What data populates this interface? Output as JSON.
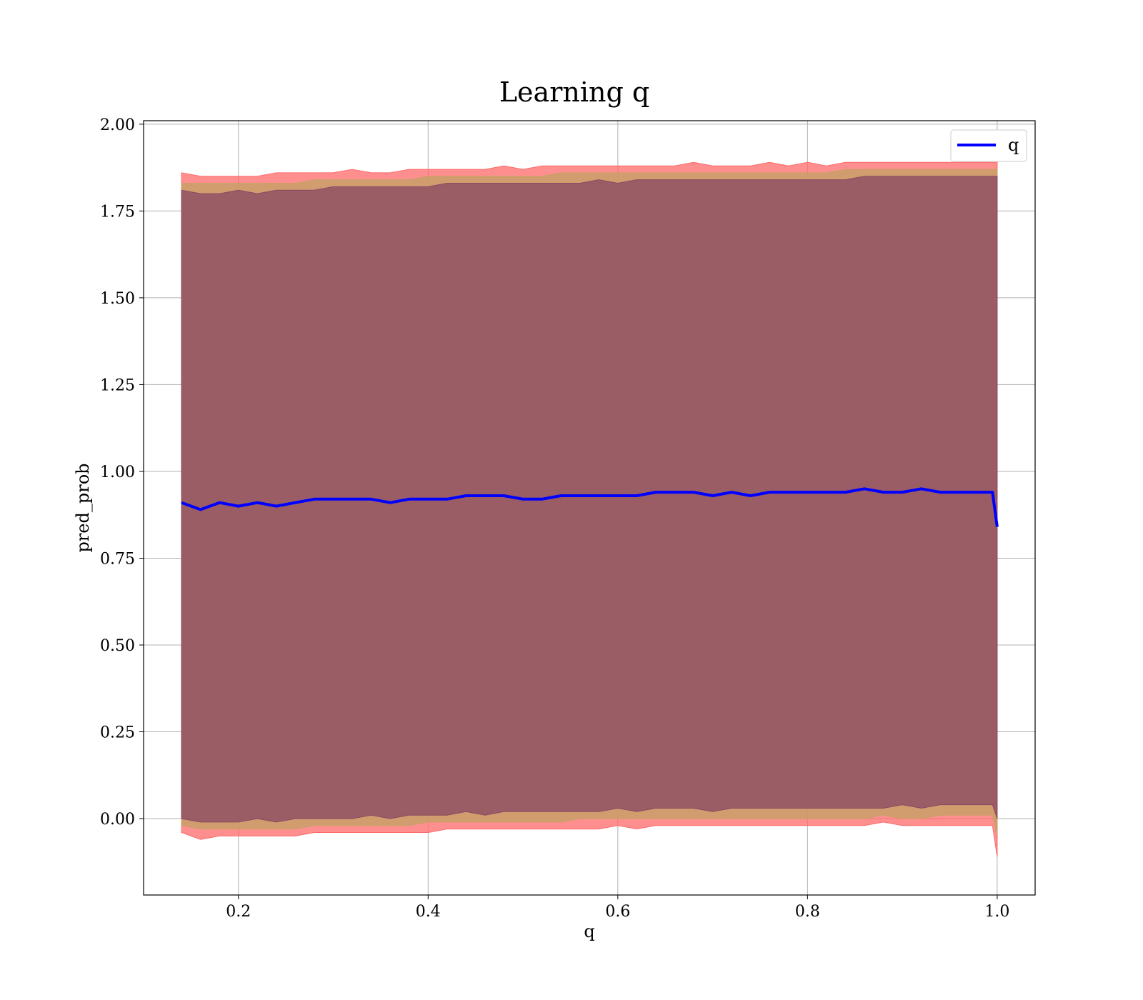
{
  "chart_data": {
    "type": "line",
    "title": "Learning q",
    "xlabel": "q",
    "ylabel": "pred_prob",
    "xlim": [
      0.1,
      1.04
    ],
    "ylim": [
      -0.22,
      2.01
    ],
    "x_ticks": [
      "0.2",
      "0.4",
      "0.6",
      "0.8",
      "1.0"
    ],
    "y_ticks": [
      "0.00",
      "0.25",
      "0.50",
      "0.75",
      "1.00",
      "1.25",
      "1.50",
      "1.75",
      "2.00"
    ],
    "grid": true,
    "legend": {
      "placement": "top-right",
      "entries": [
        {
          "name": "q",
          "color": "#0000ff"
        }
      ]
    },
    "colors": {
      "line": "#0000ff",
      "band_outer": "#ff6a6a",
      "band_mid": "#c9a06a",
      "band_inner": "#8a4a63",
      "grid": "#b0b0b0"
    },
    "series": [
      {
        "name": "q",
        "x": [
          0.14,
          0.16,
          0.18,
          0.2,
          0.22,
          0.24,
          0.26,
          0.28,
          0.3,
          0.32,
          0.34,
          0.36,
          0.38,
          0.4,
          0.42,
          0.44,
          0.46,
          0.48,
          0.5,
          0.52,
          0.54,
          0.56,
          0.58,
          0.6,
          0.62,
          0.64,
          0.66,
          0.68,
          0.7,
          0.72,
          0.74,
          0.76,
          0.78,
          0.8,
          0.82,
          0.84,
          0.86,
          0.88,
          0.9,
          0.92,
          0.94,
          0.96,
          0.98,
          0.995,
          1.0
        ],
        "values": [
          0.91,
          0.89,
          0.91,
          0.9,
          0.91,
          0.9,
          0.91,
          0.92,
          0.92,
          0.92,
          0.92,
          0.91,
          0.92,
          0.92,
          0.92,
          0.93,
          0.93,
          0.93,
          0.92,
          0.92,
          0.93,
          0.93,
          0.93,
          0.93,
          0.93,
          0.94,
          0.94,
          0.94,
          0.93,
          0.94,
          0.93,
          0.94,
          0.94,
          0.94,
          0.94,
          0.94,
          0.95,
          0.94,
          0.94,
          0.95,
          0.94,
          0.94,
          0.94,
          0.94,
          0.84
        ]
      }
    ],
    "bands": [
      {
        "upper": [
          1.86,
          1.85,
          1.85,
          1.85,
          1.85,
          1.86,
          1.86,
          1.86,
          1.86,
          1.87,
          1.86,
          1.86,
          1.87,
          1.87,
          1.87,
          1.87,
          1.87,
          1.88,
          1.87,
          1.88,
          1.88,
          1.88,
          1.88,
          1.88,
          1.88,
          1.88,
          1.88,
          1.89,
          1.88,
          1.88,
          1.88,
          1.89,
          1.88,
          1.89,
          1.88,
          1.89,
          1.89,
          1.89,
          1.89,
          1.89,
          1.89,
          1.89,
          1.89,
          1.89,
          1.89
        ],
        "lower": [
          -0.04,
          -0.06,
          -0.05,
          -0.05,
          -0.05,
          -0.05,
          -0.05,
          -0.04,
          -0.04,
          -0.04,
          -0.04,
          -0.04,
          -0.04,
          -0.04,
          -0.03,
          -0.03,
          -0.03,
          -0.03,
          -0.03,
          -0.03,
          -0.03,
          -0.03,
          -0.03,
          -0.02,
          -0.03,
          -0.02,
          -0.02,
          -0.02,
          -0.02,
          -0.02,
          -0.02,
          -0.02,
          -0.02,
          -0.02,
          -0.02,
          -0.02,
          -0.02,
          -0.01,
          -0.02,
          -0.02,
          -0.02,
          -0.02,
          -0.02,
          -0.02,
          -0.11
        ]
      },
      {
        "upper": [
          1.83,
          1.83,
          1.83,
          1.83,
          1.83,
          1.83,
          1.83,
          1.84,
          1.84,
          1.84,
          1.84,
          1.84,
          1.84,
          1.85,
          1.85,
          1.85,
          1.85,
          1.85,
          1.85,
          1.85,
          1.86,
          1.86,
          1.86,
          1.86,
          1.86,
          1.86,
          1.86,
          1.86,
          1.86,
          1.86,
          1.86,
          1.86,
          1.86,
          1.86,
          1.86,
          1.87,
          1.87,
          1.87,
          1.87,
          1.87,
          1.87,
          1.87,
          1.87,
          1.87,
          1.87
        ],
        "lower": [
          -0.02,
          -0.03,
          -0.03,
          -0.03,
          -0.03,
          -0.03,
          -0.03,
          -0.02,
          -0.02,
          -0.02,
          -0.02,
          -0.02,
          -0.02,
          -0.01,
          -0.01,
          -0.01,
          -0.01,
          -0.01,
          -0.01,
          -0.01,
          -0.01,
          0.0,
          0.0,
          0.0,
          0.0,
          0.0,
          0.0,
          0.0,
          0.0,
          0.0,
          0.0,
          0.0,
          0.0,
          0.0,
          0.0,
          0.0,
          0.0,
          0.01,
          0.0,
          0.0,
          0.01,
          0.01,
          0.01,
          0.01,
          -0.05
        ]
      },
      {
        "upper": [
          1.81,
          1.8,
          1.8,
          1.81,
          1.8,
          1.81,
          1.81,
          1.81,
          1.82,
          1.82,
          1.82,
          1.82,
          1.82,
          1.82,
          1.83,
          1.83,
          1.83,
          1.83,
          1.83,
          1.83,
          1.83,
          1.83,
          1.84,
          1.83,
          1.84,
          1.84,
          1.84,
          1.84,
          1.84,
          1.84,
          1.84,
          1.84,
          1.84,
          1.84,
          1.84,
          1.84,
          1.85,
          1.85,
          1.85,
          1.85,
          1.85,
          1.85,
          1.85,
          1.85,
          1.85
        ],
        "lower": [
          0.0,
          -0.01,
          -0.01,
          -0.01,
          0.0,
          -0.01,
          0.0,
          0.0,
          0.0,
          0.0,
          0.01,
          0.0,
          0.01,
          0.01,
          0.01,
          0.02,
          0.01,
          0.02,
          0.02,
          0.02,
          0.02,
          0.02,
          0.02,
          0.03,
          0.02,
          0.03,
          0.03,
          0.03,
          0.02,
          0.03,
          0.03,
          0.03,
          0.03,
          0.03,
          0.03,
          0.03,
          0.03,
          0.03,
          0.04,
          0.03,
          0.04,
          0.04,
          0.04,
          0.04,
          0.0
        ]
      }
    ]
  }
}
